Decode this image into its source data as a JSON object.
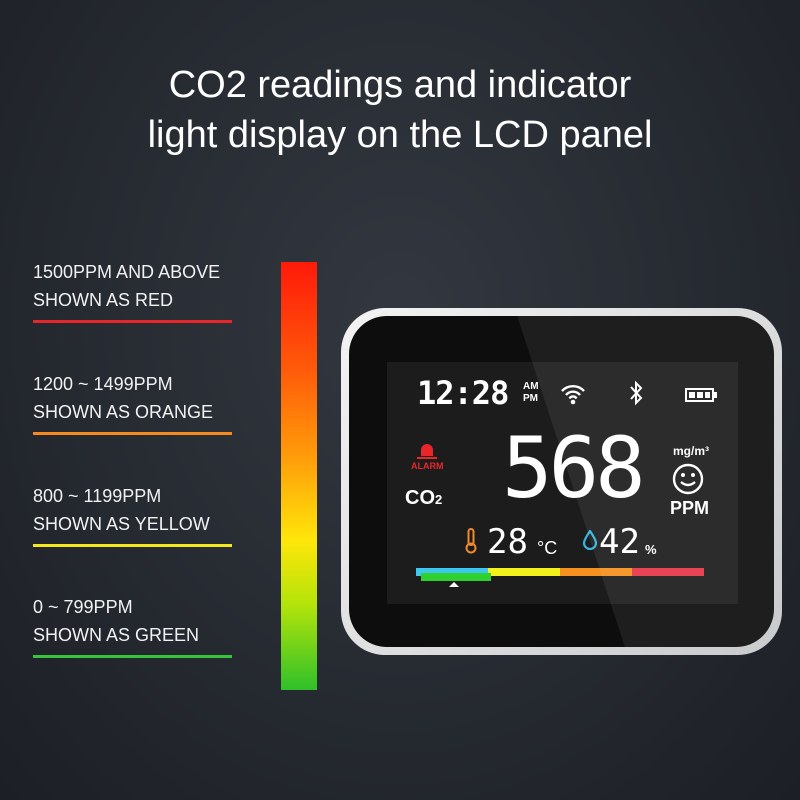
{
  "title": {
    "line1": "CO2 readings and indicator",
    "line2": "light display on the LCD panel"
  },
  "legend": [
    {
      "range": "1500PPM AND ABOVE",
      "desc": "SHOWN AS RED",
      "color": "#e8262a"
    },
    {
      "range": "1200 ~ 1499PPM",
      "desc": "SHOWN AS ORANGE",
      "color": "#f58a1f"
    },
    {
      "range": "800 ~ 1199PPM",
      "desc": "SHOWN AS YELLOW",
      "color": "#f4e81c"
    },
    {
      "range": "0 ~ 799PPM",
      "desc": "SHOWN AS GREEN",
      "color": "#35c43a"
    }
  ],
  "display": {
    "time": "12:28",
    "am": "AM",
    "pm": "PM",
    "icons": [
      "wifi-icon",
      "bluetooth-icon",
      "battery-icon",
      "alarm-bell-icon",
      "thermometer-icon",
      "droplet-icon",
      "smiley-icon"
    ],
    "alarm": "ALARM",
    "co2": "CO",
    "co2_sub": "2",
    "reading": "568",
    "unit_mg": "mg/m³",
    "unit_ppm": "PPM",
    "temp": "28",
    "temp_unit": "°C",
    "humidity": "42",
    "humidity_unit": "%",
    "bar_colors": [
      "#3ec8f0",
      "#f4f01c",
      "#f5921f",
      "#e8364a"
    ],
    "indicator_color": "#2fd12f"
  }
}
